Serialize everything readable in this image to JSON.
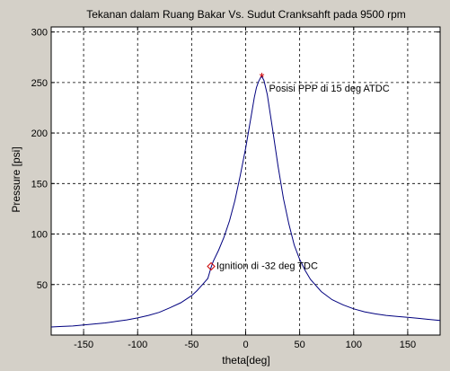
{
  "chart_data": {
    "type": "line",
    "title": "Tekanan dalam Ruang Bakar Vs. Sudut Cranksahft pada 9500 rpm",
    "xlabel": "theta[deg]",
    "ylabel": "Pressure [psi]",
    "xlim": [
      -180,
      180
    ],
    "ylim": [
      0,
      305
    ],
    "xticks": [
      -150,
      -100,
      -50,
      0,
      50,
      100,
      150
    ],
    "yticks": [
      50,
      100,
      150,
      200,
      250,
      300
    ],
    "grid": true,
    "series": [
      {
        "color": "#00007f",
        "x": [
          -180,
          -170,
          -160,
          -150,
          -140,
          -130,
          -120,
          -110,
          -100,
          -90,
          -80,
          -70,
          -60,
          -50,
          -45,
          -40,
          -35,
          -32,
          -30,
          -25,
          -20,
          -15,
          -10,
          -5,
          0,
          5,
          8,
          10,
          12,
          14,
          15,
          17,
          20,
          25,
          30,
          35,
          40,
          45,
          50,
          55,
          60,
          70,
          80,
          90,
          100,
          110,
          120,
          130,
          140,
          150,
          160,
          170,
          180
        ],
        "y": [
          8,
          8.5,
          9,
          10,
          11,
          12,
          13.5,
          15,
          17,
          19.5,
          22.5,
          27,
          32,
          39,
          44,
          50,
          56,
          67,
          73,
          84,
          97,
          113,
          133,
          158,
          185,
          216,
          235,
          245,
          251,
          255,
          256,
          252,
          238,
          203,
          167,
          135,
          110,
          89,
          75,
          64,
          55,
          43,
          35,
          30,
          26,
          23,
          21,
          19.5,
          18.5,
          17.5,
          16.5,
          15.5,
          14.5
        ]
      }
    ],
    "markers": [
      {
        "symbol": "*",
        "x": 15,
        "y": 256,
        "label": "Posisi PPP di 15 deg ATDC",
        "color": "#cc0000"
      },
      {
        "symbol": "diamond",
        "x": -32,
        "y": 68,
        "label": "Ignition di -32 deg TDC",
        "color": "#cc0000"
      }
    ],
    "colors": {
      "background": "#d4d0c8",
      "plot_bg": "#ffffff",
      "line": "#00007f"
    }
  }
}
